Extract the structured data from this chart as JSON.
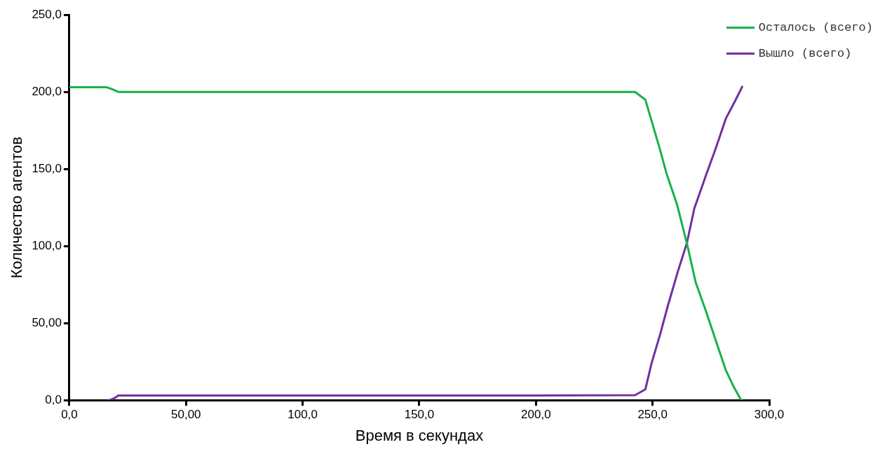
{
  "chart_data": {
    "type": "line",
    "xlabel": "Время в секундах",
    "ylabel": "Количество агентов",
    "xlim": [
      0,
      300
    ],
    "xticks": [
      {
        "value": 0,
        "label": "0,0"
      },
      {
        "value": 50,
        "label": "50,00"
      },
      {
        "value": 100,
        "label": "100,0"
      },
      {
        "value": 150,
        "label": "150,0"
      },
      {
        "value": 200,
        "label": "200,0"
      },
      {
        "value": 250,
        "label": "250,0"
      },
      {
        "value": 300,
        "label": "300,0"
      }
    ],
    "ylim": [
      0,
      250
    ],
    "yticks": [
      {
        "value": 0,
        "label": "0,0"
      },
      {
        "value": 50,
        "label": "50,00"
      },
      {
        "value": 100,
        "label": "100,0"
      },
      {
        "value": 150,
        "label": "150,0"
      },
      {
        "value": 200,
        "label": "200,0"
      },
      {
        "value": 250,
        "label": "250,0"
      }
    ],
    "grid": false,
    "legend": "top right",
    "marker": "none",
    "line_style": "solid",
    "series": [
      {
        "name": "Осталось (всего)",
        "color": "#1ab04c",
        "x": [
          0,
          16,
          18,
          21,
          100,
          200,
          242.5,
          246.9,
          249.5,
          253.3,
          256,
          260.4,
          264.7,
          268.5,
          272.8,
          277.1,
          281.5,
          285,
          288
        ],
        "values": [
          203,
          203,
          202,
          200,
          200,
          200,
          200,
          195,
          181.6,
          162,
          147,
          127.4,
          101.9,
          76.3,
          58.2,
          38.7,
          19.1,
          8,
          0
        ]
      },
      {
        "name": "Вышло (всего)",
        "color": "#7030a0",
        "x": [
          17,
          19,
          21,
          100,
          200,
          242.5,
          246.9,
          249.5,
          253.3,
          256.5,
          260.9,
          264.7,
          267.9,
          272.8,
          277.1,
          281.5,
          285.2,
          288.4
        ],
        "values": [
          0,
          1,
          3,
          3,
          3,
          3.3,
          7,
          23.6,
          43,
          61,
          83.8,
          101.9,
          124.4,
          145.5,
          163.5,
          183,
          193.6,
          203.3
        ]
      }
    ]
  }
}
